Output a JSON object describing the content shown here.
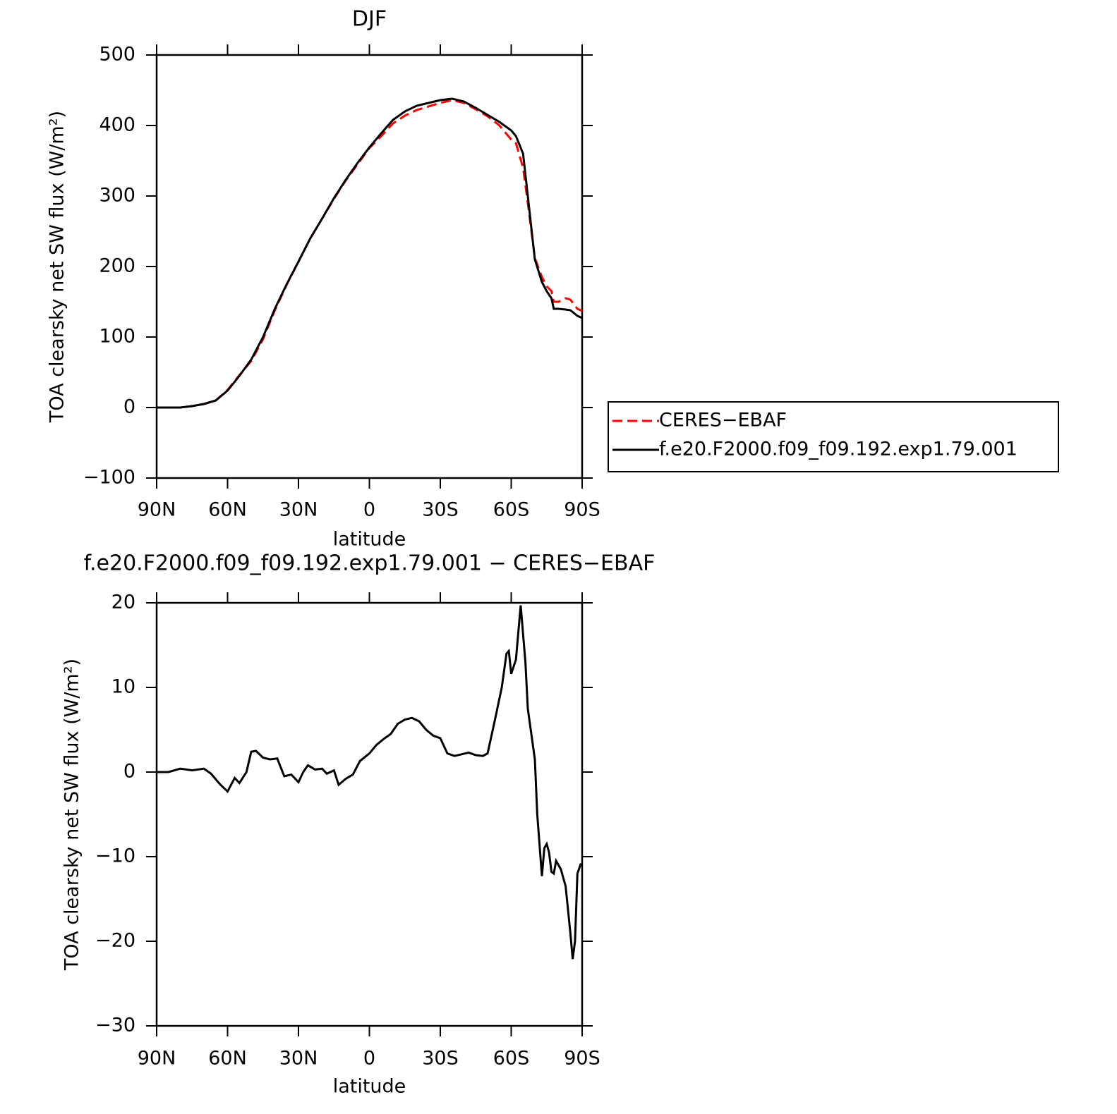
{
  "chart_data": [
    {
      "type": "line",
      "title": "DJF",
      "ylabel": "TOA clearsky net SW flux (W/m²)",
      "xlabel": "latitude",
      "x": [
        90,
        85,
        80,
        75,
        70,
        65,
        60,
        55,
        50,
        45,
        40,
        35,
        30,
        25,
        20,
        15,
        10,
        5,
        0,
        -5,
        -10,
        -15,
        -20,
        -25,
        -30,
        -35,
        -40,
        -45,
        -50,
        -55,
        -60,
        -62,
        -65,
        -67,
        -70,
        -73,
        -75,
        -77,
        -78,
        -80,
        -83,
        -85,
        -88,
        -90
      ],
      "series": [
        {
          "name": "CERES−EBAF",
          "color": "#ff0000",
          "dashed": true,
          "values": [
            0,
            0,
            0,
            2,
            5,
            10,
            25,
            46,
            66,
            97,
            138,
            174,
            207,
            240,
            268,
            296,
            322,
            345,
            368,
            385,
            403,
            414,
            422,
            427,
            432,
            436,
            432,
            423,
            413,
            400,
            380,
            375,
            340,
            290,
            212,
            185,
            172,
            165,
            150,
            150,
            155,
            153,
            140,
            137
          ]
        },
        {
          "name": "f.e20.F2000.f09_f09.192.exp1.79.001",
          "color": "#000000",
          "dashed": false,
          "values": [
            0,
            0,
            0,
            2,
            5,
            10,
            24,
            45,
            68,
            100,
            140,
            175,
            207,
            240,
            268,
            297,
            323,
            347,
            369,
            389,
            408,
            420,
            428,
            432,
            436,
            438,
            434,
            425,
            415,
            405,
            393,
            385,
            360,
            300,
            210,
            178,
            165,
            155,
            140,
            140,
            139,
            138,
            130,
            127
          ]
        }
      ],
      "xlim": [
        90,
        -90
      ],
      "xticks": [
        {
          "value": 90,
          "label": "90N"
        },
        {
          "value": 60,
          "label": "60N"
        },
        {
          "value": 30,
          "label": "30N"
        },
        0,
        {
          "value": -30,
          "label": "30S"
        },
        {
          "value": -60,
          "label": "60S"
        },
        {
          "value": -90,
          "label": "90S"
        }
      ],
      "ylim": [
        -100,
        500
      ],
      "yticks": [
        {
          "value": -100,
          "label": "−100"
        },
        0,
        100,
        200,
        300,
        400,
        500
      ],
      "legend": "right"
    },
    {
      "type": "line",
      "title": "f.e20.F2000.f09_f09.192.exp1.79.001 − CERES−EBAF",
      "ylabel": "TOA clearsky net SW flux (W/m²)",
      "xlabel": "latitude",
      "x": [
        90,
        85,
        80,
        75,
        70,
        67,
        63,
        60,
        57,
        55,
        52,
        50,
        48,
        45,
        42,
        39,
        36,
        33,
        30,
        28,
        26,
        23,
        20,
        18,
        15,
        13,
        10,
        7,
        4,
        0,
        -3,
        -6,
        -9,
        -12,
        -15,
        -18,
        -21,
        -24,
        -27,
        -30,
        -33,
        -36,
        -39,
        -42,
        -45,
        -48,
        -50,
        -53,
        -56,
        -58,
        -59,
        -60,
        -62,
        -64,
        -66,
        -67,
        -70,
        -71,
        -73,
        -74,
        -75,
        -76,
        -77,
        -78,
        -79,
        -81,
        -83,
        -85,
        -86,
        -87,
        -88,
        -89.5
      ],
      "color": "#000000",
      "values": [
        0,
        0,
        0.4,
        0.2,
        0.4,
        -0.2,
        -1.5,
        -2.3,
        -0.7,
        -1.3,
        0,
        2.4,
        2.5,
        1.7,
        1.5,
        1.6,
        -0.5,
        -0.3,
        -1.2,
        0,
        0.8,
        0.3,
        0.4,
        -0.2,
        0.2,
        -1.5,
        -0.8,
        -0.3,
        1.3,
        2.2,
        3.2,
        3.9,
        4.5,
        5.7,
        6.2,
        6.4,
        6.0,
        5,
        4.3,
        4.0,
        2.2,
        1.9,
        2.1,
        2.3,
        2.0,
        1.9,
        2.2,
        6,
        10,
        14,
        14.3,
        11.6,
        13.3,
        19.7,
        13,
        7.5,
        1.5,
        -5,
        -12.3,
        -9,
        -8.5,
        -9.5,
        -11.8,
        -12,
        -10.5,
        -11.5,
        -13.5,
        -19,
        -22.1,
        -20,
        -12,
        -10.8
      ],
      "xlim": [
        90,
        -90
      ],
      "xticks": [
        {
          "value": 90,
          "label": "90N"
        },
        {
          "value": 60,
          "label": "60N"
        },
        {
          "value": 30,
          "label": "30N"
        },
        0,
        {
          "value": -30,
          "label": "30S"
        },
        {
          "value": -60,
          "label": "60S"
        },
        {
          "value": -90,
          "label": "90S"
        }
      ],
      "ylim": [
        -30,
        20
      ],
      "yticks": [
        {
          "value": -30,
          "label": "−30"
        },
        {
          "value": -20,
          "label": "−20"
        },
        {
          "value": -10,
          "label": "−10"
        },
        0,
        10,
        20
      ]
    }
  ]
}
